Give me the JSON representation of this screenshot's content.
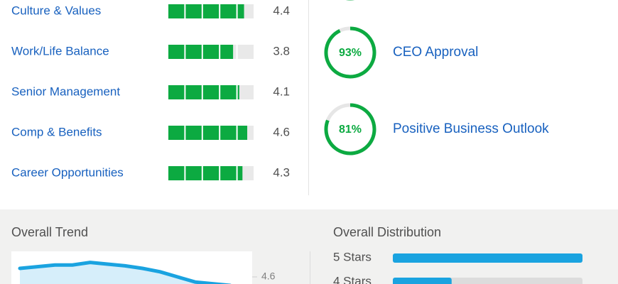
{
  "ratings": [
    {
      "label": "Culture & Values",
      "value": 4.4
    },
    {
      "label": "Work/Life Balance",
      "value": 3.8
    },
    {
      "label": "Senior Management",
      "value": 4.1
    },
    {
      "label": "Comp & Benefits",
      "value": 4.6
    },
    {
      "label": "Career Opportunities",
      "value": 4.3
    }
  ],
  "approvals": [
    {
      "value": 93,
      "value_label": "93%",
      "label": "CEO Approval"
    },
    {
      "value": 81,
      "value_label": "81%",
      "label": "Positive Business Outlook"
    }
  ],
  "overall_trend": {
    "title": "Overall Trend",
    "yticks": [
      4.6
    ],
    "values": [
      4.7,
      4.72,
      4.74,
      4.74,
      4.77,
      4.75,
      4.73,
      4.7,
      4.66,
      4.6,
      4.54,
      4.52,
      4.5
    ]
  },
  "overall_distribution": {
    "title": "Overall Distribution",
    "categories": [
      "5 Stars",
      "4 Stars"
    ],
    "values": [
      100,
      31
    ],
    "xlim": [
      0,
      100
    ]
  }
}
